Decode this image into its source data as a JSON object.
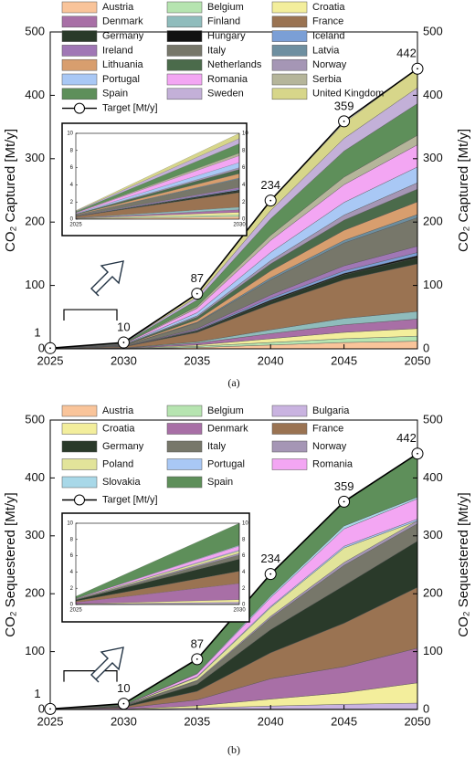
{
  "chart_data": [
    {
      "type": "stacked_area",
      "caption": "(a)",
      "ylabel": "CO₂ Captured [Mt/y]",
      "y2label": "CO₂ Captured [Mt/y]",
      "x": [
        2025,
        2030,
        2035,
        2040,
        2045,
        2050
      ],
      "xlim": [
        2025,
        2050
      ],
      "ylim": [
        0,
        500
      ],
      "yticks": [
        0,
        100,
        200,
        300,
        400,
        500
      ],
      "y2lim": [
        0,
        500
      ],
      "y2ticks": [
        0,
        100,
        200,
        300,
        400,
        500
      ],
      "series": [
        {
          "name": "Austria",
          "color": "#f9c49a",
          "values": [
            0.03,
            0.3,
            2,
            6,
            10,
            12
          ]
        },
        {
          "name": "Belgium",
          "color": "#b6e4b0",
          "values": [
            0.02,
            0.2,
            2,
            4,
            6,
            8
          ]
        },
        {
          "name": "Croatia",
          "color": "#f3ee9c",
          "values": [
            0.03,
            0.3,
            2,
            6,
            10,
            12
          ]
        },
        {
          "name": "Denmark",
          "color": "#a86fa6",
          "values": [
            0.03,
            0.3,
            3,
            8,
            12,
            15
          ]
        },
        {
          "name": "Finland",
          "color": "#8fbcbc",
          "values": [
            0.03,
            0.3,
            2,
            6,
            10,
            12
          ]
        },
        {
          "name": "France",
          "color": "#9a7352",
          "values": [
            0.17,
            1.7,
            15,
            40,
            61,
            75
          ]
        },
        {
          "name": "Germany",
          "color": "#2a3a2a",
          "values": [
            0.02,
            0.2,
            2,
            5,
            8,
            10
          ]
        },
        {
          "name": "Hungary",
          "color": "#111111",
          "values": [
            0.01,
            0.1,
            1,
            2,
            2,
            3
          ]
        },
        {
          "name": "Iceland",
          "color": "#7b9fd6",
          "values": [
            0.01,
            0.1,
            1,
            3,
            4,
            5
          ]
        },
        {
          "name": "Ireland",
          "color": "#a077b5",
          "values": [
            0.02,
            0.2,
            2,
            5,
            8,
            10
          ]
        },
        {
          "name": "Italy",
          "color": "#77776a",
          "values": [
            0.1,
            1,
            9,
            24,
            36,
            45
          ]
        },
        {
          "name": "Latvia",
          "color": "#6e8fa0",
          "values": [
            0.01,
            0.1,
            1,
            3,
            4,
            5
          ]
        },
        {
          "name": "Lithuania",
          "color": "#d89e6e",
          "values": [
            0.05,
            0.5,
            4,
            11,
            16,
            20
          ]
        },
        {
          "name": "Netherlands",
          "color": "#4b6b4b",
          "values": [
            0.05,
            0.5,
            4,
            11,
            16,
            20
          ]
        },
        {
          "name": "Norway",
          "color": "#a596b5",
          "values": [
            0.02,
            0.2,
            2,
            5,
            8,
            10
          ]
        },
        {
          "name": "Portugal",
          "color": "#a9c8f5",
          "values": [
            0.06,
            0.6,
            5,
            13,
            20,
            25
          ]
        },
        {
          "name": "Romania",
          "color": "#f3a6f3",
          "values": [
            0.08,
            0.8,
            7,
            19,
            28,
            35
          ]
        },
        {
          "name": "Serbia",
          "color": "#b5b59a",
          "values": [
            0.03,
            0.3,
            3,
            8,
            12,
            15
          ]
        },
        {
          "name": "Spain",
          "color": "#5e8f5a",
          "values": [
            0.11,
            1.1,
            10,
            26,
            41,
            50
          ]
        },
        {
          "name": "Sweden",
          "color": "#c3b0d8",
          "values": [
            0.06,
            0.6,
            5,
            13,
            20,
            25
          ]
        },
        {
          "name": "United Kingdom",
          "color": "#d7d68a",
          "values": [
            0.06,
            0.6,
            5,
            16,
            24,
            30
          ]
        }
      ],
      "target": {
        "name": "Target [Mt/y]",
        "values": [
          1,
          10,
          87,
          234,
          359,
          442
        ]
      },
      "inset": {
        "xlim": [
          2025,
          2030
        ],
        "ylim": [
          0,
          10
        ],
        "xticks": [
          2025,
          2030
        ],
        "yticks": [
          0,
          2,
          4,
          6,
          8,
          10
        ]
      }
    },
    {
      "type": "stacked_area",
      "caption": "(b)",
      "ylabel": "CO₂ Sequestered [Mt/y]",
      "y2label": "CO₂ Sequestered [Mt/y]",
      "x": [
        2025,
        2030,
        2035,
        2040,
        2045,
        2050
      ],
      "xlim": [
        2025,
        2050
      ],
      "ylim": [
        0,
        500
      ],
      "yticks": [
        0,
        100,
        200,
        300,
        400,
        500
      ],
      "y2lim": [
        0,
        500
      ],
      "y2ticks": [
        0,
        100,
        200,
        300,
        400,
        500
      ],
      "series": [
        {
          "name": "Austria",
          "color": "#f9c49a",
          "values": [
            0.01,
            0.05,
            0.3,
            0.5,
            0.5,
            0.5
          ]
        },
        {
          "name": "Belgium",
          "color": "#b6e4b0",
          "values": [
            0.01,
            0.05,
            0.2,
            0.5,
            0.5,
            0.5
          ]
        },
        {
          "name": "Bulgaria",
          "color": "#c9b3e0",
          "values": [
            0.02,
            0.2,
            2,
            5,
            8,
            10
          ]
        },
        {
          "name": "Croatia",
          "color": "#f3ee9c",
          "values": [
            0.03,
            0.3,
            4,
            12,
            20,
            35
          ]
        },
        {
          "name": "Denmark",
          "color": "#a86fa6",
          "values": [
            0.2,
            2,
            10,
            35,
            45,
            60
          ]
        },
        {
          "name": "France",
          "color": "#9a7352",
          "values": [
            0.15,
            1.5,
            15,
            45,
            75,
            105
          ]
        },
        {
          "name": "Germany",
          "color": "#2a3a2a",
          "values": [
            0.15,
            1.5,
            12,
            40,
            65,
            80
          ]
        },
        {
          "name": "Italy",
          "color": "#77776a",
          "values": [
            0.05,
            0.5,
            6,
            20,
            35,
            30
          ]
        },
        {
          "name": "Norway",
          "color": "#a596b5",
          "values": [
            0.02,
            0.2,
            1,
            3,
            5,
            5
          ]
        },
        {
          "name": "Poland",
          "color": "#e2e49a",
          "values": [
            0.03,
            0.3,
            5,
            15,
            25,
            0
          ]
        },
        {
          "name": "Portugal",
          "color": "#a9c8f5",
          "values": [
            0.01,
            0.1,
            1,
            2,
            3,
            3
          ]
        },
        {
          "name": "Romania",
          "color": "#f3a6f3",
          "values": [
            0.05,
            0.5,
            5,
            15,
            30,
            35
          ]
        },
        {
          "name": "Slovakia",
          "color": "#a8d8e8",
          "values": [
            0.01,
            0.1,
            1,
            3,
            5,
            3
          ]
        },
        {
          "name": "Spain",
          "color": "#5e8f5a",
          "values": [
            0.26,
            2.7,
            24.5,
            38,
            42,
            75
          ]
        }
      ],
      "target": {
        "name": "Target [Mt/y]",
        "values": [
          1,
          10,
          87,
          234,
          359,
          442
        ]
      },
      "inset": {
        "xlim": [
          2025,
          2030
        ],
        "ylim": [
          0,
          10
        ],
        "xticks": [
          2025,
          2030
        ],
        "yticks": [
          0,
          2,
          4,
          6,
          8,
          10
        ]
      }
    }
  ]
}
